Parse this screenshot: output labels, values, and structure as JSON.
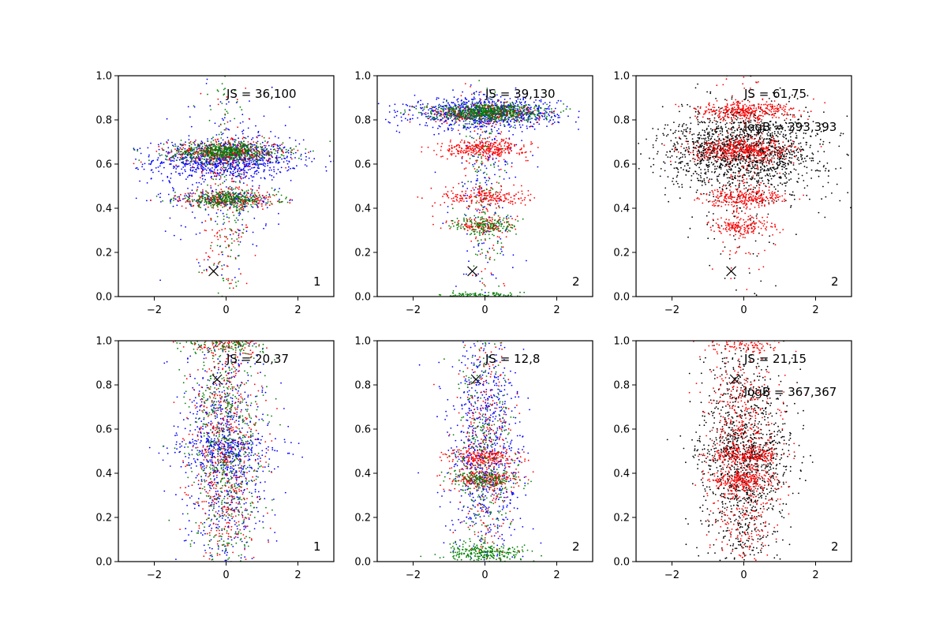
{
  "colors": {
    "blue": "#0000ff",
    "green": "#008000",
    "red": "#ff0000",
    "black": "#000000"
  },
  "chart_data": [
    {
      "type": "scatter",
      "xlim": [
        -3,
        3
      ],
      "ylim": [
        0,
        1
      ],
      "xticks": [
        "−2",
        "0",
        "2"
      ],
      "yticks": [
        "0.0",
        "0.2",
        "0.4",
        "0.6",
        "0.8",
        "1.0"
      ],
      "annotations": [
        "JS = 36,100"
      ],
      "panel_label": "1",
      "marker": {
        "x": -0.35,
        "y": 0.115
      },
      "series_colors": [
        "blue",
        "red",
        "green"
      ],
      "clusters": [
        {
          "series": "blue",
          "y": 0.62,
          "sy": 0.045,
          "sx": 1.0,
          "n": 900
        },
        {
          "series": "blue",
          "y": 0.44,
          "sy": 0.02,
          "sx": 0.8,
          "n": 150
        },
        {
          "series": "blue",
          "y": 0.55,
          "sy": 0.2,
          "sx": 0.9,
          "n": 200
        },
        {
          "series": "red",
          "y": 0.655,
          "sy": 0.025,
          "sx": 0.8,
          "n": 350
        },
        {
          "series": "red",
          "y": 0.44,
          "sy": 0.018,
          "sx": 0.7,
          "n": 220
        },
        {
          "series": "red",
          "y": 0.4,
          "sy": 0.28,
          "sx": 0.35,
          "n": 180
        },
        {
          "series": "green",
          "y": 0.655,
          "sy": 0.022,
          "sx": 0.8,
          "n": 550
        },
        {
          "series": "green",
          "y": 0.44,
          "sy": 0.018,
          "sx": 0.7,
          "n": 300
        },
        {
          "series": "green",
          "y": 0.4,
          "sy": 0.28,
          "sx": 0.3,
          "n": 150
        }
      ]
    },
    {
      "type": "scatter",
      "xlim": [
        -3,
        3
      ],
      "ylim": [
        0,
        1
      ],
      "xticks": [
        "−2",
        "0",
        "2"
      ],
      "yticks": [
        "0.0",
        "0.2",
        "0.4",
        "0.6",
        "0.8",
        "1.0"
      ],
      "annotations": [
        "JS = 39,130"
      ],
      "panel_label": "2",
      "marker": {
        "x": -0.35,
        "y": 0.115
      },
      "series_colors": [
        "blue",
        "red",
        "green"
      ],
      "clusters": [
        {
          "series": "blue",
          "y": 0.83,
          "sy": 0.035,
          "sx": 1.0,
          "n": 900
        },
        {
          "series": "blue",
          "y": 0.5,
          "sy": 0.25,
          "sx": 0.45,
          "n": 180
        },
        {
          "series": "red",
          "y": 0.83,
          "sy": 0.02,
          "sx": 0.8,
          "n": 250
        },
        {
          "series": "red",
          "y": 0.67,
          "sy": 0.02,
          "sx": 0.6,
          "n": 320
        },
        {
          "series": "red",
          "y": 0.45,
          "sy": 0.02,
          "sx": 0.6,
          "n": 200
        },
        {
          "series": "red",
          "y": 0.32,
          "sy": 0.02,
          "sx": 0.45,
          "n": 120
        },
        {
          "series": "red",
          "y": 0.5,
          "sy": 0.3,
          "sx": 0.3,
          "n": 150
        },
        {
          "series": "green",
          "y": 0.835,
          "sy": 0.02,
          "sx": 0.8,
          "n": 600
        },
        {
          "series": "green",
          "y": 0.32,
          "sy": 0.02,
          "sx": 0.45,
          "n": 150
        },
        {
          "series": "green",
          "y": 0.005,
          "sy": 0.008,
          "sx": 0.6,
          "n": 120
        },
        {
          "series": "green",
          "y": 0.5,
          "sy": 0.3,
          "sx": 0.3,
          "n": 150
        }
      ]
    },
    {
      "type": "scatter",
      "xlim": [
        -3,
        3
      ],
      "ylim": [
        0,
        1
      ],
      "xticks": [
        "−2",
        "0",
        "2"
      ],
      "yticks": [
        "0.0",
        "0.2",
        "0.4",
        "0.6",
        "0.8",
        "1.0"
      ],
      "annotations": [
        "JS = 61,75",
        "logB = 393,393"
      ],
      "panel_label": "2",
      "marker": {
        "x": -0.35,
        "y": 0.115
      },
      "series_colors": [
        "black",
        "red"
      ],
      "clusters": [
        {
          "series": "black",
          "y": 0.66,
          "sy": 0.09,
          "sx": 1.1,
          "n": 1500
        },
        {
          "series": "black",
          "y": 0.45,
          "sy": 0.25,
          "sx": 0.8,
          "n": 150
        },
        {
          "series": "red",
          "y": 0.84,
          "sy": 0.022,
          "sx": 0.7,
          "n": 350
        },
        {
          "series": "red",
          "y": 0.66,
          "sy": 0.025,
          "sx": 0.7,
          "n": 450
        },
        {
          "series": "red",
          "y": 0.45,
          "sy": 0.02,
          "sx": 0.6,
          "n": 250
        },
        {
          "series": "red",
          "y": 0.32,
          "sy": 0.02,
          "sx": 0.45,
          "n": 150
        },
        {
          "series": "red",
          "y": 0.5,
          "sy": 0.28,
          "sx": 0.35,
          "n": 200
        }
      ]
    },
    {
      "type": "scatter",
      "xlim": [
        -3,
        3
      ],
      "ylim": [
        0,
        1
      ],
      "xticks": [
        "−2",
        "0",
        "2"
      ],
      "yticks": [
        "0.0",
        "0.2",
        "0.4",
        "0.6",
        "0.8",
        "1.0"
      ],
      "annotations": [
        "JS = 20,37"
      ],
      "panel_label": "1",
      "marker": {
        "x": -0.25,
        "y": 0.825
      },
      "series_colors": [
        "blue",
        "red",
        "green"
      ],
      "clusters": [
        {
          "series": "blue",
          "y": 0.5,
          "sy": 0.28,
          "sx": 0.55,
          "n": 800
        },
        {
          "series": "blue",
          "y": 0.5,
          "sy": 0.05,
          "sx": 0.8,
          "n": 200
        },
        {
          "series": "red",
          "y": 0.5,
          "sy": 0.3,
          "sx": 0.5,
          "n": 600
        },
        {
          "series": "red",
          "y": 0.99,
          "sy": 0.02,
          "sx": 0.6,
          "n": 100
        },
        {
          "series": "green",
          "y": 0.5,
          "sy": 0.3,
          "sx": 0.5,
          "n": 600
        },
        {
          "series": "green",
          "y": 0.99,
          "sy": 0.02,
          "sx": 0.6,
          "n": 120
        }
      ]
    },
    {
      "type": "scatter",
      "xlim": [
        -3,
        3
      ],
      "ylim": [
        0,
        1
      ],
      "xticks": [
        "−2",
        "0",
        "2"
      ],
      "yticks": [
        "0.0",
        "0.2",
        "0.4",
        "0.6",
        "0.8",
        "1.0"
      ],
      "annotations": [
        "JS = 12,8"
      ],
      "panel_label": "2",
      "marker": {
        "x": -0.25,
        "y": 0.825
      },
      "series_colors": [
        "blue",
        "red",
        "green"
      ],
      "clusters": [
        {
          "series": "blue",
          "y": 0.5,
          "sy": 0.28,
          "sx": 0.5,
          "n": 800
        },
        {
          "series": "red",
          "y": 0.47,
          "sy": 0.02,
          "sx": 0.5,
          "n": 200
        },
        {
          "series": "red",
          "y": 0.37,
          "sy": 0.02,
          "sx": 0.5,
          "n": 200
        },
        {
          "series": "red",
          "y": 0.5,
          "sy": 0.3,
          "sx": 0.4,
          "n": 300
        },
        {
          "series": "green",
          "y": 0.04,
          "sy": 0.02,
          "sx": 0.6,
          "n": 250
        },
        {
          "series": "green",
          "y": 0.37,
          "sy": 0.02,
          "sx": 0.5,
          "n": 150
        },
        {
          "series": "green",
          "y": 0.5,
          "sy": 0.3,
          "sx": 0.4,
          "n": 300
        }
      ]
    },
    {
      "type": "scatter",
      "xlim": [
        -3,
        3
      ],
      "ylim": [
        0,
        1
      ],
      "xticks": [
        "−2",
        "0",
        "2"
      ],
      "yticks": [
        "0.0",
        "0.2",
        "0.4",
        "0.6",
        "0.8",
        "1.0"
      ],
      "annotations": [
        "JS = 21,15",
        "logB = 367,367"
      ],
      "panel_label": "2",
      "marker": {
        "x": -0.25,
        "y": 0.825
      },
      "series_colors": [
        "black",
        "red"
      ],
      "clusters": [
        {
          "series": "black",
          "y": 0.45,
          "sy": 0.25,
          "sx": 0.6,
          "n": 1100
        },
        {
          "series": "black",
          "y": 0.5,
          "sy": 0.05,
          "sx": 0.8,
          "n": 200
        },
        {
          "series": "red",
          "y": 0.5,
          "sy": 0.3,
          "sx": 0.5,
          "n": 700
        },
        {
          "series": "red",
          "y": 0.48,
          "sy": 0.02,
          "sx": 0.5,
          "n": 200
        },
        {
          "series": "red",
          "y": 0.37,
          "sy": 0.02,
          "sx": 0.5,
          "n": 200
        },
        {
          "series": "red",
          "y": 0.99,
          "sy": 0.02,
          "sx": 0.5,
          "n": 100
        }
      ]
    }
  ]
}
